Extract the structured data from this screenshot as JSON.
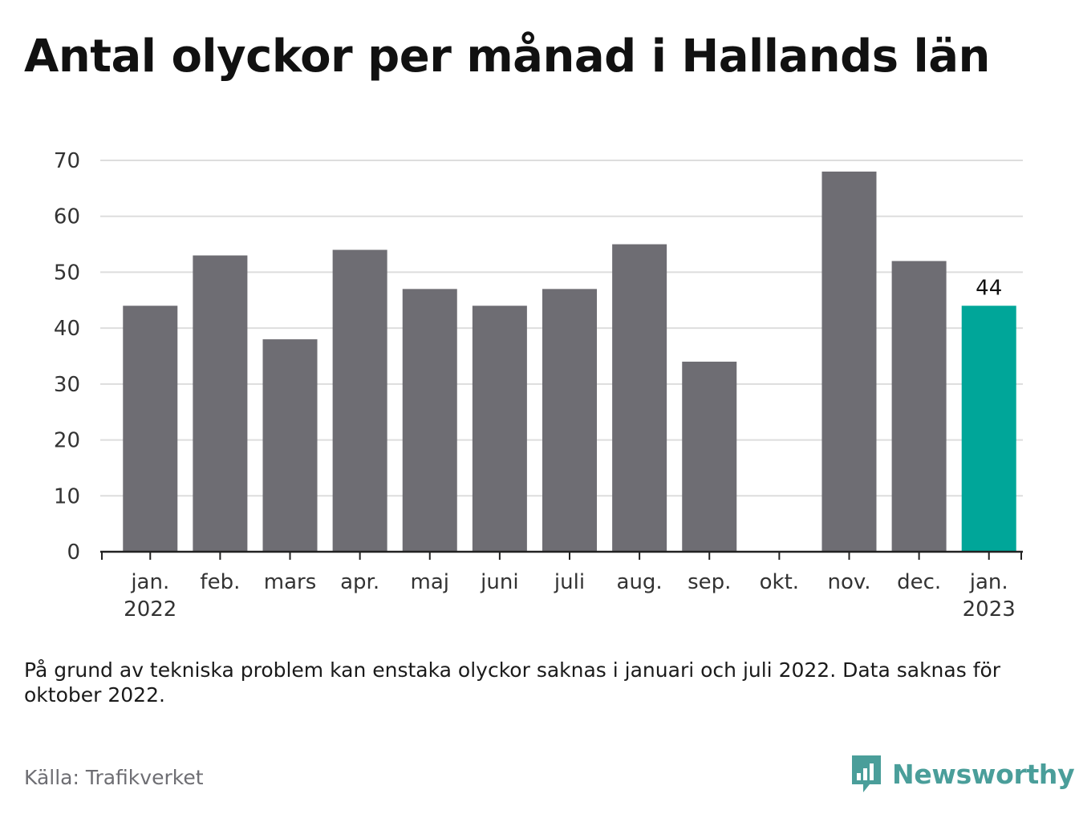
{
  "title": "Antal olyckor per månad i Hallands län",
  "note": "På grund av tekniska problem kan enstaka olyckor saknas i januari och juli 2022. Data saknas för oktober 2022.",
  "source": "Källa: Trafikverket",
  "brand": {
    "name": "Newsworthy",
    "icon": "chart-speech-bubble-icon"
  },
  "colors": {
    "bar": "#6e6d73",
    "highlight": "#00a699",
    "grid": "#dddddd",
    "axis": "#222222",
    "brand": "#4a9e9a"
  },
  "chart_data": {
    "type": "bar",
    "categories": [
      [
        "jan.",
        "2022"
      ],
      [
        "feb."
      ],
      [
        "mars"
      ],
      [
        "apr."
      ],
      [
        "maj"
      ],
      [
        "juni"
      ],
      [
        "juli"
      ],
      [
        "aug."
      ],
      [
        "sep."
      ],
      [
        "okt."
      ],
      [
        "nov."
      ],
      [
        "dec."
      ],
      [
        "jan.",
        "2023"
      ]
    ],
    "values": [
      44,
      53,
      38,
      54,
      47,
      44,
      47,
      55,
      34,
      null,
      68,
      52,
      44
    ],
    "highlight_index": 12,
    "data_labels": [
      {
        "index": 12,
        "text": "44"
      }
    ],
    "ylim": [
      0,
      70
    ],
    "yticks": [
      0,
      10,
      20,
      30,
      40,
      50,
      60,
      70
    ],
    "grid": true,
    "legend": "none"
  }
}
